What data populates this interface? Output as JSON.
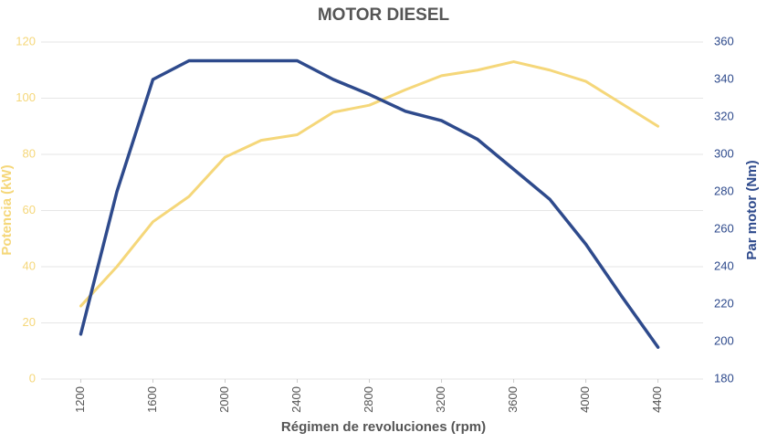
{
  "chart_data": {
    "type": "line",
    "title": "MOTOR DIESEL",
    "x_label": "Régimen de revoluciones (rpm)",
    "y_label": "Potencia (kW)",
    "y2_label": "Par motor (Nm)",
    "x": [
      1200,
      1400,
      1600,
      1800,
      2000,
      2200,
      2400,
      2600,
      2800,
      3000,
      3200,
      3400,
      3600,
      3800,
      4000,
      4200,
      4400
    ],
    "series": [
      {
        "name": "Potencia (kW)",
        "color": "#f5d77a",
        "values": [
          26,
          40,
          56,
          65,
          79,
          85,
          87,
          95,
          97.5,
          103,
          108,
          110,
          113,
          110,
          106,
          98,
          90
        ]
      },
      {
        "name": "Par motor (Nm)",
        "color": "#2e4a8c",
        "axis": "y2",
        "values": [
          204,
          280,
          340,
          350,
          350,
          350,
          350,
          340,
          332,
          323,
          318,
          308,
          292,
          276,
          252,
          224,
          197
        ]
      }
    ],
    "xlim": [
      980,
      4650
    ],
    "xticks": [
      1200,
      1600,
      2000,
      2400,
      2800,
      3200,
      3600,
      4000,
      4400
    ],
    "ylim": [
      0,
      120
    ],
    "yticks": [
      0,
      20,
      40,
      60,
      80,
      100,
      120
    ],
    "y2lim": [
      180,
      360
    ],
    "y2ticks": [
      180,
      200,
      220,
      240,
      260,
      280,
      300,
      320,
      340,
      360
    ],
    "grid": true
  }
}
